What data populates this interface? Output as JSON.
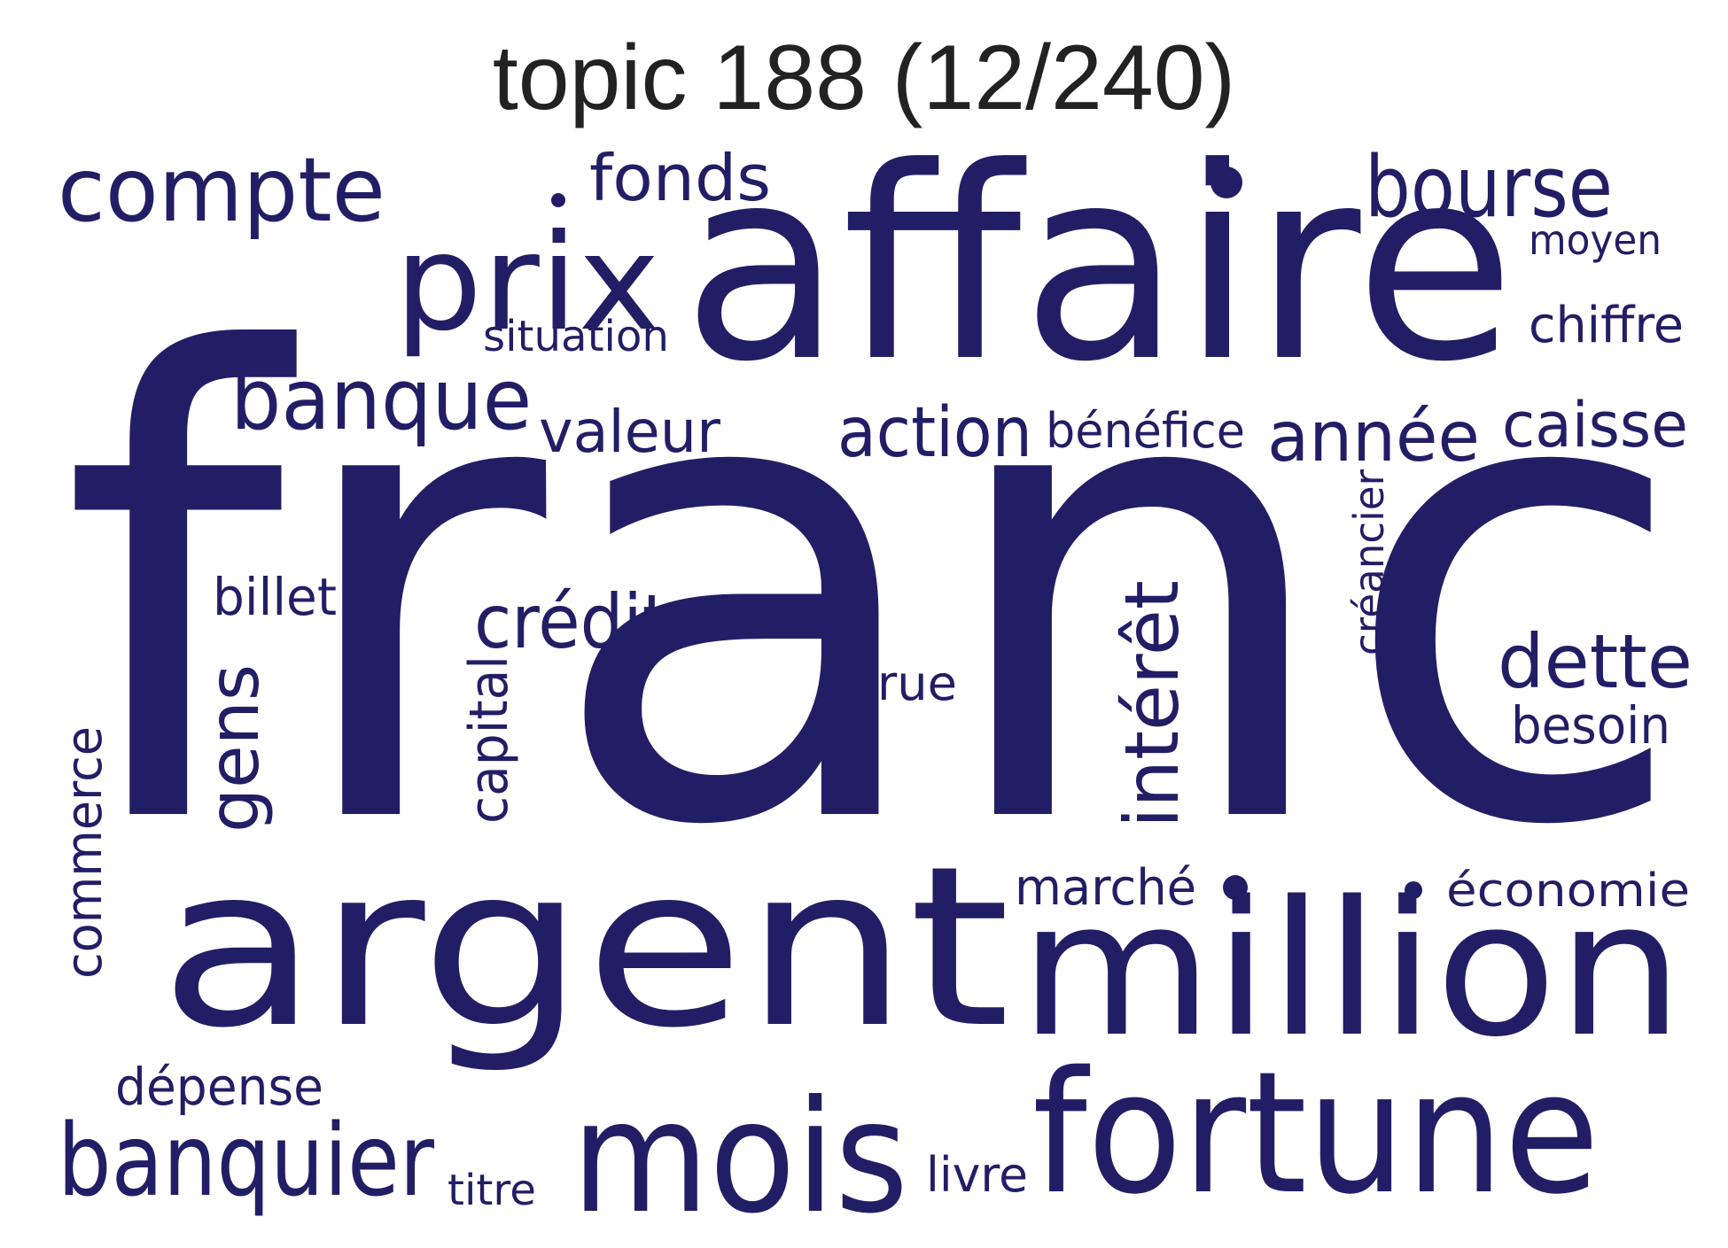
{
  "title": "topic 188 (12/240)",
  "colors": {
    "word": "#221e66",
    "title": "#222222",
    "background": "#ffffff"
  },
  "words": [
    {
      "text": "franc"
    },
    {
      "text": "affaire"
    },
    {
      "text": "argent"
    },
    {
      "text": "million"
    },
    {
      "text": "fortune"
    },
    {
      "text": "mois"
    },
    {
      "text": "prix"
    },
    {
      "text": "compte"
    },
    {
      "text": "bourse"
    },
    {
      "text": "banque"
    },
    {
      "text": "banquier"
    },
    {
      "text": "fonds"
    },
    {
      "text": "action"
    },
    {
      "text": "année"
    },
    {
      "text": "caisse"
    },
    {
      "text": "dette"
    },
    {
      "text": "intérêt"
    },
    {
      "text": "crédit"
    },
    {
      "text": "valeur"
    },
    {
      "text": "gens"
    },
    {
      "text": "chiffre"
    },
    {
      "text": "bénéfice"
    },
    {
      "text": "marché"
    },
    {
      "text": "économie"
    },
    {
      "text": "besoin"
    },
    {
      "text": "dépense"
    },
    {
      "text": "situation"
    },
    {
      "text": "billet"
    },
    {
      "text": "capital"
    },
    {
      "text": "commerce"
    },
    {
      "text": "moyen"
    },
    {
      "text": "rue"
    },
    {
      "text": "créancier"
    },
    {
      "text": "livre"
    },
    {
      "text": "titre"
    }
  ]
}
